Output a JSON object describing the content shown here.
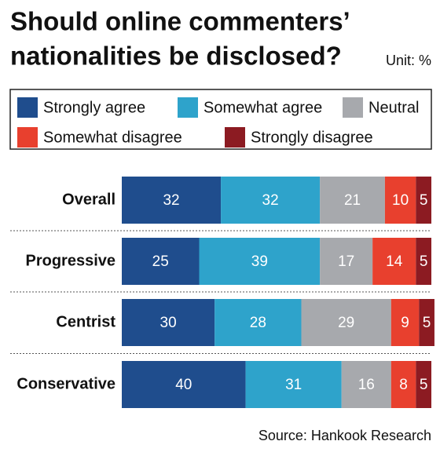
{
  "chart_data": {
    "type": "bar",
    "orientation": "horizontal",
    "stacked": true,
    "title": "Should online commenters’ nationalities be disclosed?",
    "unit": "Unit: %",
    "source": "Source: Hankook Research",
    "categories": [
      "Overall",
      "Progressive",
      "Centrist",
      "Conservative"
    ],
    "xlim": [
      0,
      100
    ],
    "series": [
      {
        "name": "Strongly agree",
        "color": "#1f4d8d",
        "values": [
          32,
          25,
          30,
          40
        ]
      },
      {
        "name": "Somewhat agree",
        "color": "#2ea3cb",
        "values": [
          32,
          39,
          28,
          31
        ]
      },
      {
        "name": "Neutral",
        "color": "#a7a9ad",
        "values": [
          21,
          17,
          29,
          16
        ]
      },
      {
        "name": "Somewhat disagree",
        "color": "#e8402e",
        "values": [
          10,
          14,
          9,
          8
        ]
      },
      {
        "name": "Strongly disagree",
        "color": "#8c1b22",
        "values": [
          5,
          5,
          5,
          5
        ]
      }
    ]
  }
}
